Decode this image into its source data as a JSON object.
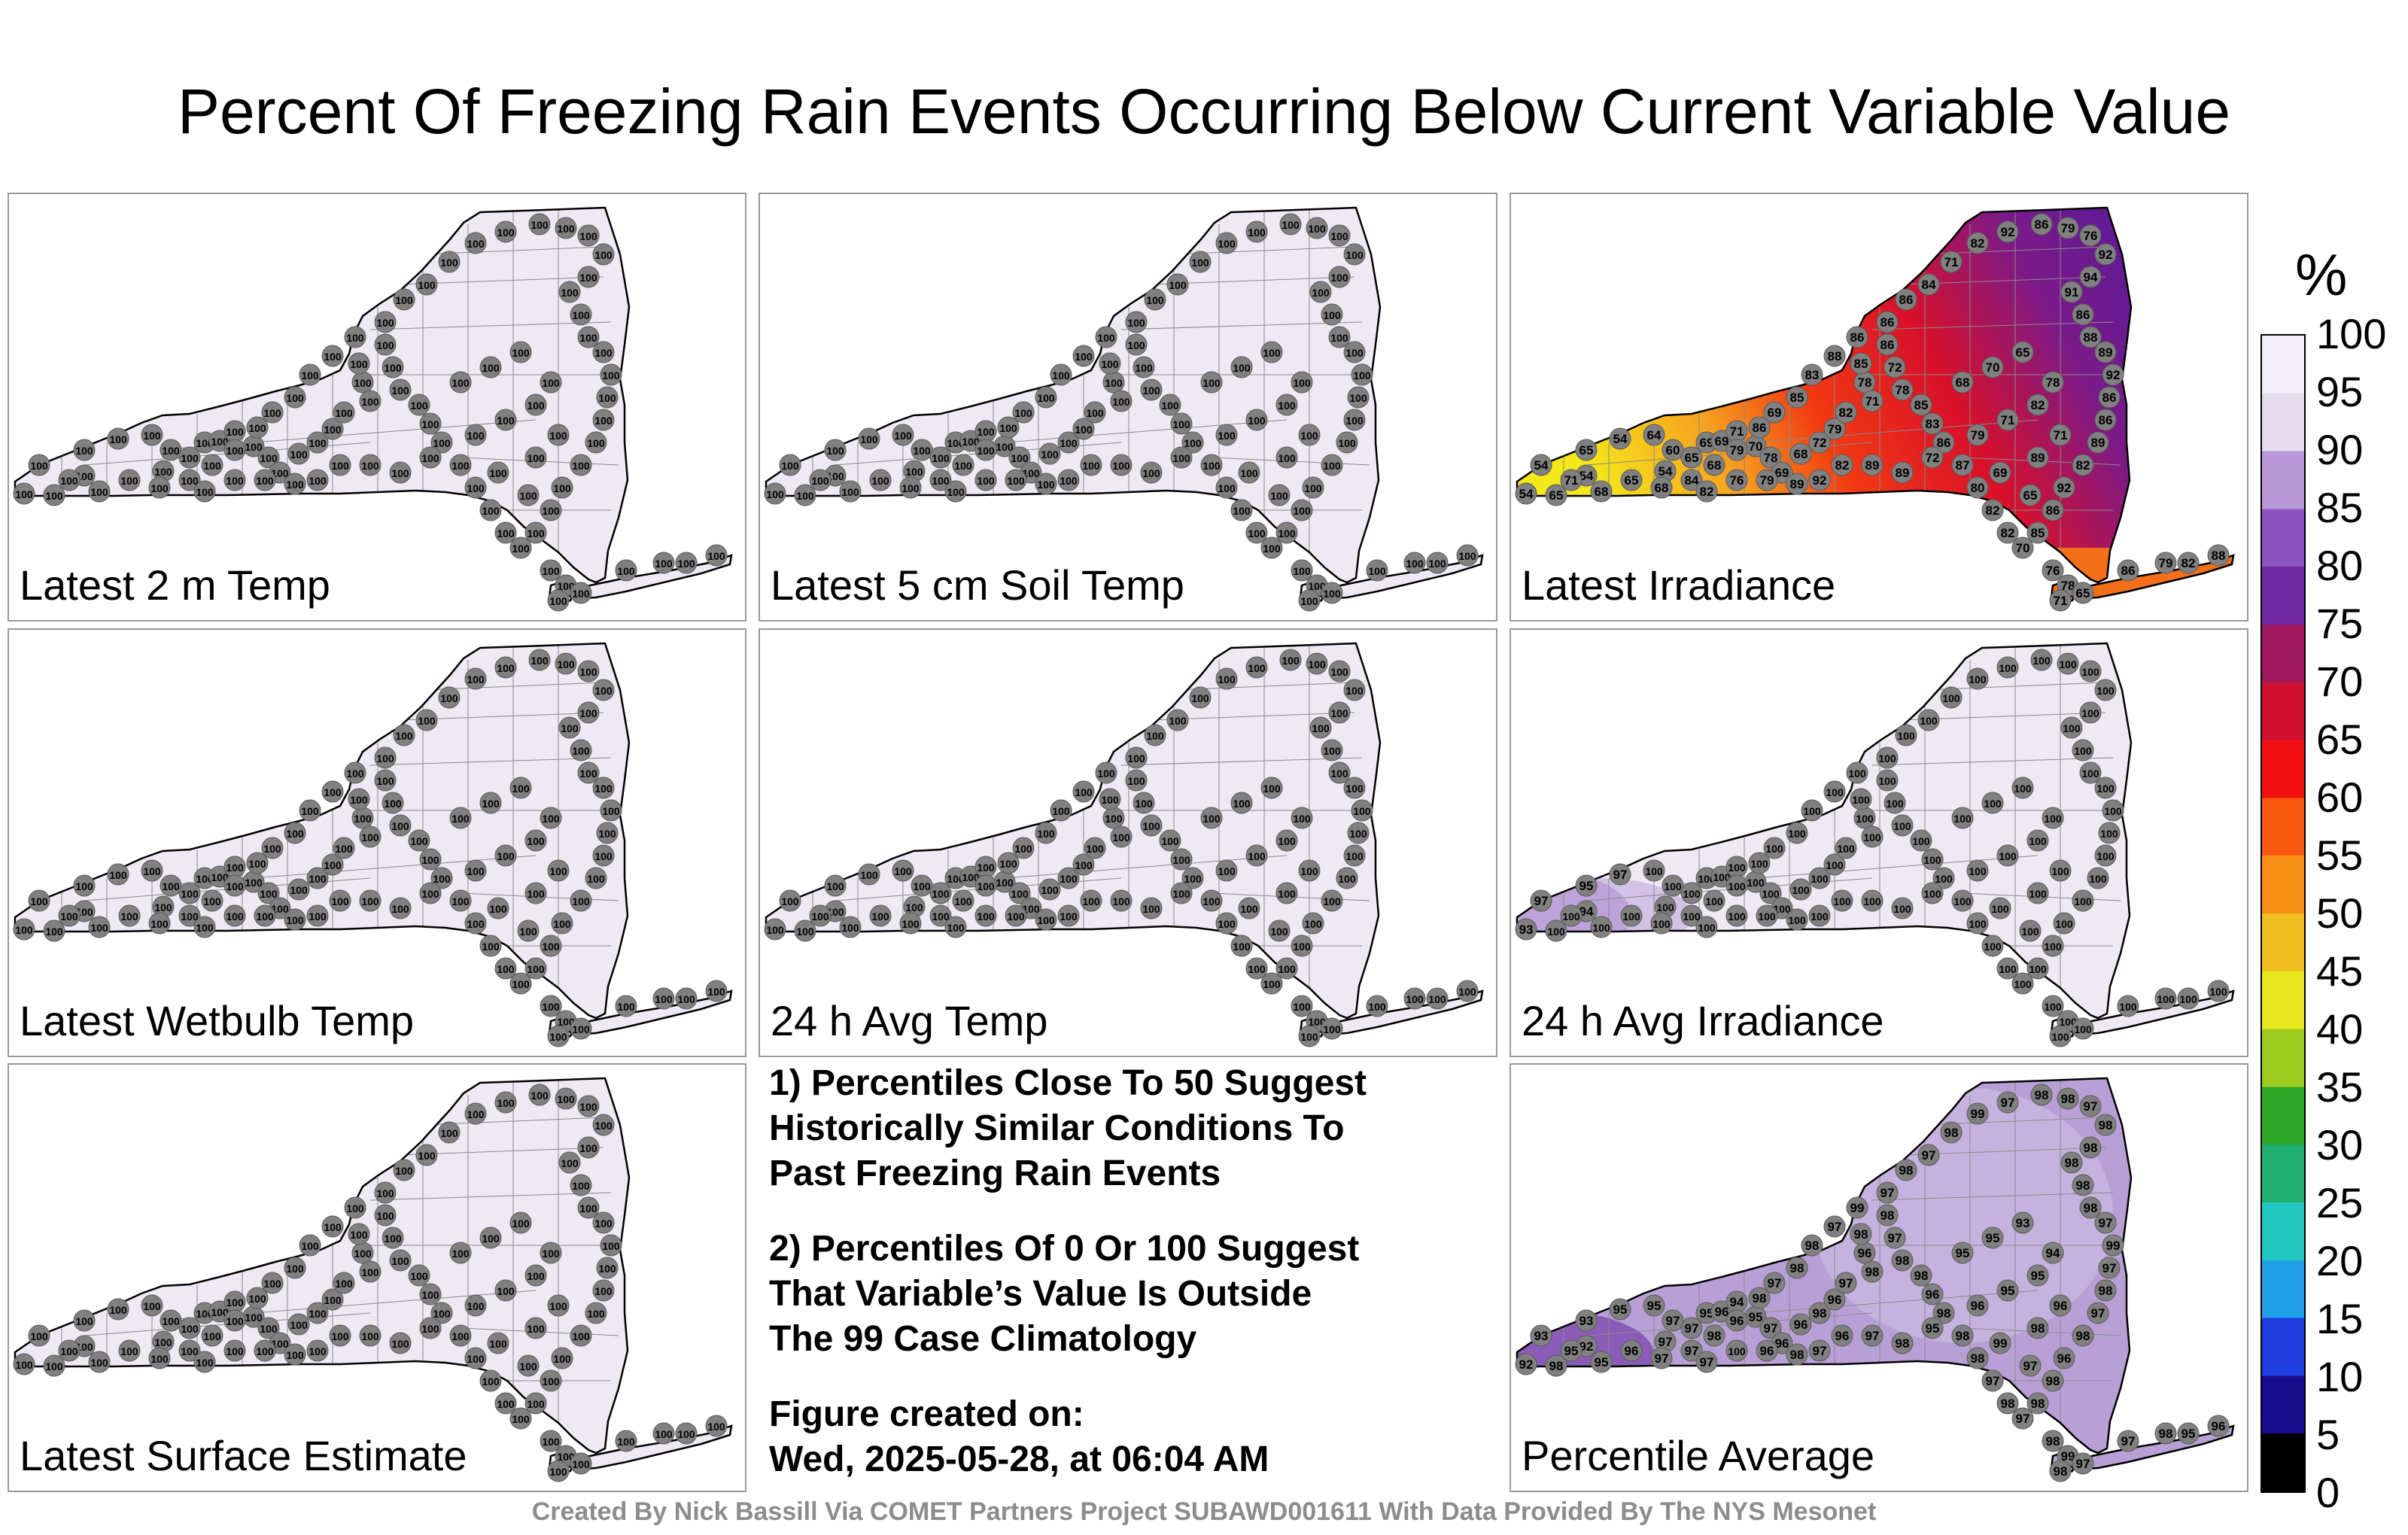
{
  "title": "Percent Of Freezing Rain Events Occurring Below Current Variable Value",
  "panels": [
    {
      "label": "Latest 2 m Temp",
      "mode": "flat100"
    },
    {
      "label": "Latest 5 cm Soil Temp",
      "mode": "flat100"
    },
    {
      "label": "Latest Irradiance",
      "mode": "irradiance"
    },
    {
      "label": "Latest Wetbulb Temp",
      "mode": "flat100"
    },
    {
      "label": "24 h Avg Temp",
      "mode": "flat100"
    },
    {
      "label": "24 h Avg Irradiance",
      "mode": "avgirr"
    },
    {
      "label": "Latest Surface Estimate",
      "mode": "flat100"
    },
    {
      "label": "Percentile Average",
      "mode": "avg"
    }
  ],
  "notes": {
    "note1": "1) Percentiles Close To 50 Suggest\nHistorically Similar Conditions To\nPast Freezing Rain Events",
    "note2": "2) Percentiles Of 0 Or 100 Suggest\nThat Variable’s Value Is Outside\nThe 99 Case Climatology",
    "created": "Figure created on:\nWed, 2025-05-28, at 06:04 AM"
  },
  "footer": "Created By Nick Bassill Via COMET Partners Project SUBAWD001611 With Data Provided By The NYS Mesonet",
  "colorbar": {
    "unit": "%",
    "ticks": [
      "100",
      "95",
      "90",
      "85",
      "80",
      "75",
      "70",
      "65",
      "60",
      "55",
      "50",
      "45",
      "40",
      "35",
      "30",
      "25",
      "20",
      "15",
      "10",
      "5",
      "0"
    ],
    "colors": [
      "#000000",
      "#1a0a8c",
      "#1f3de0",
      "#1fa0e8",
      "#22c8c0",
      "#20b070",
      "#2ea628",
      "#9ccc20",
      "#e8e820",
      "#f0c020",
      "#f89018",
      "#f85810",
      "#f01010",
      "#d01030",
      "#a01860",
      "#7028a0",
      "#8c54c0",
      "#b898d8",
      "#e4dcec",
      "#f4f0f8"
    ]
  },
  "map_values": {
    "flat100": [
      "100",
      "100",
      "100",
      "100",
      "100",
      "100",
      "100",
      "100",
      "100",
      "100",
      "100",
      "100",
      "100",
      "100",
      "100",
      "100",
      "100",
      "100",
      "100",
      "100",
      "100",
      "100",
      "100",
      "100",
      "100",
      "100",
      "100",
      "100",
      "100",
      "100",
      "100",
      "100",
      "100",
      "100",
      "100",
      "100",
      "100",
      "100",
      "100",
      "100",
      "100",
      "100",
      "100",
      "100",
      "100",
      "100",
      "100",
      "100",
      "100",
      "100",
      "100",
      "100",
      "100",
      "100",
      "100",
      "100",
      "100",
      "100",
      "100",
      "100",
      "100",
      "100",
      "100",
      "100",
      "100",
      "100",
      "100",
      "100",
      "100",
      "100",
      "100",
      "100",
      "100",
      "100",
      "100",
      "100",
      "100",
      "100",
      "100",
      "100",
      "100",
      "100",
      "100",
      "100",
      "100",
      "100",
      "100",
      "100",
      "100",
      "100",
      "100",
      "100",
      "100",
      "100",
      "100",
      "100",
      "100",
      "100"
    ],
    "irradiance": [
      "54",
      "54",
      "54",
      "65",
      "54",
      "64",
      "54",
      "60",
      "65",
      "69",
      "69",
      "71",
      "70",
      "78",
      "69",
      "68",
      "72",
      "79",
      "82",
      "78",
      "71",
      "85",
      "86",
      "72",
      "78",
      "85",
      "83",
      "86",
      "87",
      "80",
      "82",
      "82",
      "70",
      "85",
      "86",
      "92",
      "82",
      "89",
      "86",
      "86",
      "92",
      "89",
      "88",
      "86",
      "91",
      "94",
      "92",
      "76",
      "79",
      "86",
      "92",
      "82",
      "71",
      "84",
      "86",
      "86",
      "86",
      "88",
      "83",
      "85",
      "69",
      "86",
      "79",
      "68",
      "84",
      "68",
      "65",
      "68",
      "71",
      "65",
      "68",
      "70",
      "65",
      "78",
      "82",
      "71",
      "79",
      "72",
      "89",
      "89",
      "82",
      "92",
      "89",
      "79",
      "76",
      "82",
      "89",
      "71",
      "69",
      "65",
      "76",
      "78",
      "65",
      "71",
      "86",
      "79",
      "82",
      "88"
    ],
    "avgirr": [
      "93",
      "94",
      "97",
      "95",
      "97",
      "100",
      "100",
      "100",
      "100",
      "100",
      "100",
      "100",
      "100",
      "100",
      "100",
      "100",
      "100",
      "100",
      "100",
      "100",
      "100",
      "100",
      "100",
      "100",
      "100",
      "100",
      "100",
      "100",
      "100",
      "100",
      "100",
      "100",
      "100",
      "100",
      "100",
      "100",
      "100",
      "100",
      "100",
      "100",
      "100",
      "100",
      "100",
      "100",
      "100",
      "100",
      "100",
      "100",
      "100",
      "100",
      "100",
      "100",
      "100",
      "100",
      "100",
      "100",
      "100",
      "100",
      "100",
      "100",
      "100",
      "100",
      "100",
      "100",
      "100",
      "100",
      "100",
      "100",
      "100",
      "100",
      "100",
      "100",
      "100",
      "100",
      "100",
      "100",
      "100",
      "100",
      "100",
      "100",
      "100",
      "100",
      "100",
      "100",
      "100",
      "100",
      "100",
      "100",
      "100",
      "100",
      "100",
      "100",
      "100",
      "100",
      "100",
      "100",
      "100",
      "100"
    ],
    "avg": [
      "92",
      "92",
      "93",
      "93",
      "95",
      "95",
      "97",
      "97",
      "97",
      "95",
      "96",
      "94",
      "95",
      "97",
      "96",
      "96",
      "98",
      "96",
      "97",
      "96",
      "98",
      "98",
      "98",
      "97",
      "98",
      "98",
      "96",
      "98",
      "98",
      "98",
      "97",
      "98",
      "97",
      "98",
      "98",
      "96",
      "98",
      "97",
      "98",
      "97",
      "99",
      "97",
      "98",
      "98",
      "98",
      "98",
      "98",
      "97",
      "98",
      "98",
      "97",
      "99",
      "98",
      "97",
      "98",
      "97",
      "99",
      "97",
      "98",
      "98",
      "97",
      "98",
      "96",
      "98",
      "97",
      "97",
      "96",
      "95",
      "95",
      "98",
      "95",
      "95",
      "93",
      "94",
      "95",
      "95",
      "96",
      "95",
      "98",
      "97",
      "96",
      "97",
      "98",
      "96",
      "100",
      "97",
      "98",
      "96",
      "99",
      "97",
      "98",
      "99",
      "97",
      "98",
      "97",
      "98",
      "95",
      "96"
    ]
  }
}
